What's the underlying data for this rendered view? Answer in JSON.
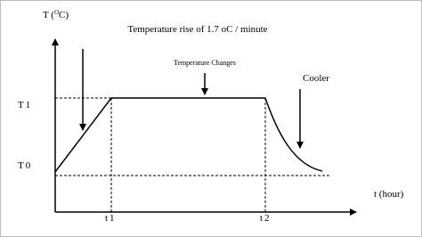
{
  "y_axis_label": {
    "main": "T (",
    "sup": "O",
    "tail": "C)"
  },
  "x_axis_label": "t (hour)",
  "annotations": {
    "rise": "Temperature rise of 1.7 oC / minute",
    "changes": "Temperature Changes",
    "cooler": "Cooler"
  },
  "levels": {
    "upper": "T1",
    "lower": "T0"
  },
  "times": {
    "first": "t1",
    "second": "t2"
  }
}
